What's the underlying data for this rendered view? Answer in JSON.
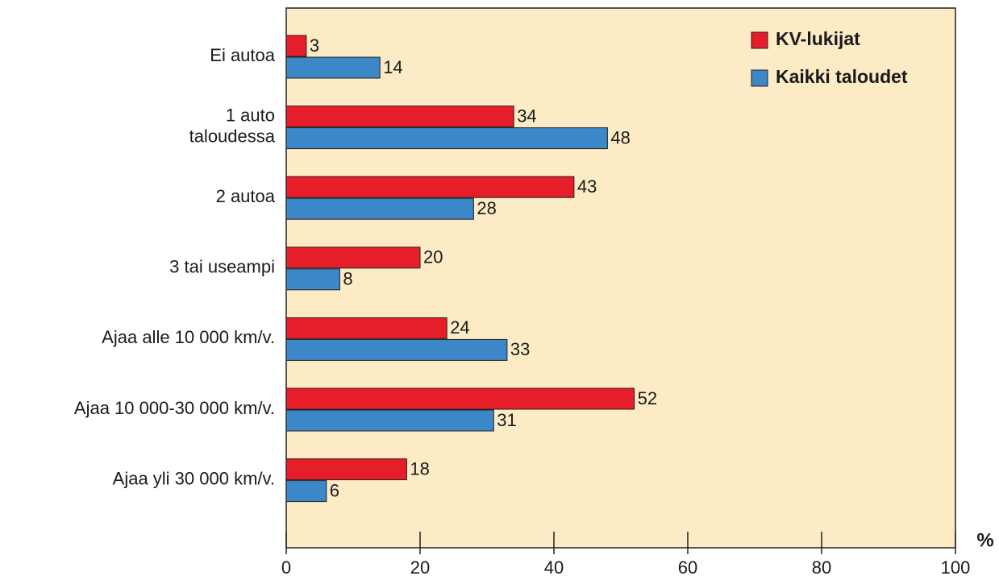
{
  "chart_data": {
    "type": "hbar",
    "categories": [
      "Ei autoa",
      "1 auto\ntaloudessa",
      "2 autoa",
      "3 tai useampi",
      "Ajaa alle 10 000 km/v.",
      "Ajaa 10 000-30 000 km/v.",
      "Ajaa yli 30 000 km/v."
    ],
    "series": [
      {
        "name": "KV-lukijat",
        "color": "#e61e2a",
        "values": [
          3,
          34,
          43,
          20,
          24,
          52,
          18
        ]
      },
      {
        "name": "Kaikki taloudet",
        "color": "#3b87c8",
        "values": [
          14,
          48,
          28,
          8,
          33,
          31,
          6
        ]
      }
    ],
    "xlim": [
      0,
      100
    ],
    "xticks": [
      0,
      20,
      40,
      60,
      80,
      100
    ],
    "x_unit": "%",
    "legend": "top-right",
    "background": "#fdebc6"
  }
}
